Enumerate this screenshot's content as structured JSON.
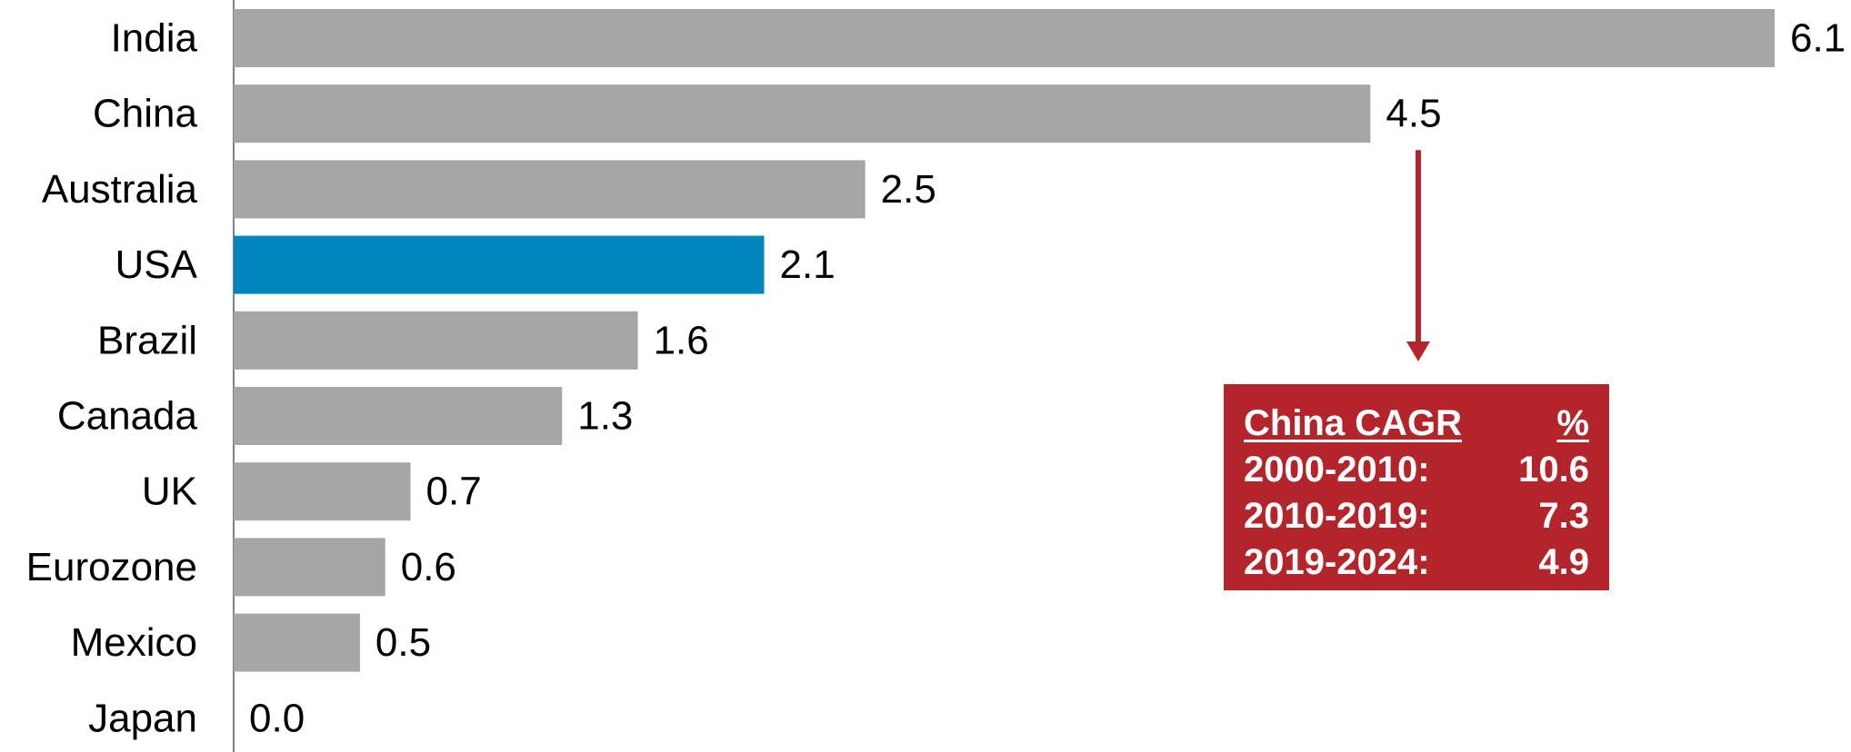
{
  "chart_data": {
    "type": "bar",
    "orientation": "horizontal",
    "categories": [
      "India",
      "China",
      "Australia",
      "USA",
      "Brazil",
      "Canada",
      "UK",
      "Eurozone",
      "Mexico",
      "Japan"
    ],
    "values": [
      6.1,
      4.5,
      2.5,
      2.1,
      1.6,
      1.3,
      0.7,
      0.6,
      0.5,
      0.0
    ],
    "value_labels": [
      "6.1",
      "4.5",
      "2.5",
      "2.1",
      "1.6",
      "1.3",
      "0.7",
      "0.6",
      "0.5",
      "0.0"
    ],
    "highlight_category": "USA",
    "colors": {
      "bar": "#a6a6a6",
      "highlight": "#0085be",
      "annotation": "#b3242b",
      "axis": "#808080"
    },
    "xlim": [
      0,
      6.1
    ],
    "grid": false,
    "legend": "none",
    "title": "",
    "xlabel": "",
    "ylabel": ""
  },
  "annotation": {
    "points_to": "China",
    "header": {
      "label": "China CAGR",
      "unit": "%"
    },
    "rows": [
      {
        "period": "2000-2010:",
        "value": "10.6"
      },
      {
        "period": "2010-2019:",
        "value": "7.3"
      },
      {
        "period": "2019-2024:",
        "value": "4.9"
      }
    ]
  }
}
